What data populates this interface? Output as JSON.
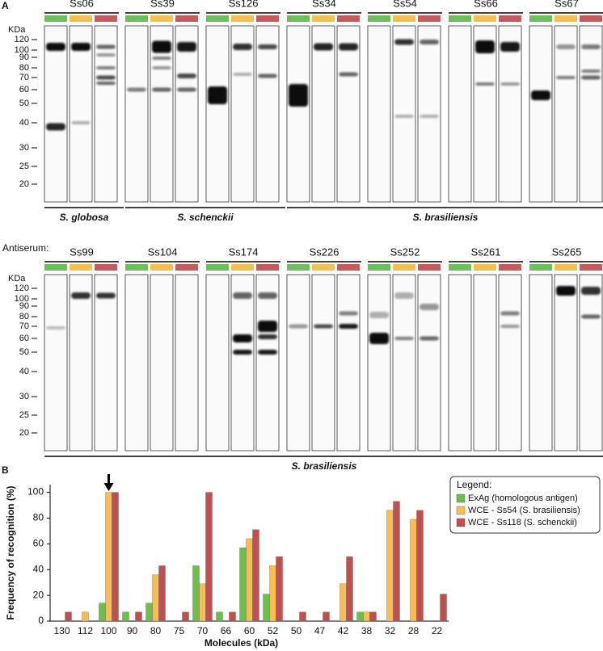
{
  "panel_a": {
    "label": "A",
    "rows": [
      {
        "antisera": [
          "Ss06",
          "Ss39",
          "Ss126",
          "Ss34",
          "Ss54",
          "Ss66",
          "Ss67"
        ],
        "marker_title": "KDa",
        "markers": [
          "120",
          "100",
          "90",
          "80",
          "70",
          "60",
          "50",
          "40",
          "30",
          "25",
          "20"
        ],
        "species": [
          "S. globosa",
          "S. schenckii",
          "S. brasiliensis"
        ]
      },
      {
        "prefix": "Antiserum:",
        "antisera": [
          "Ss99",
          "Ss104",
          "Ss174",
          "Ss226",
          "Ss252",
          "Ss261",
          "Ss265"
        ],
        "marker_title": "KDa",
        "markers": [
          "120",
          "100",
          "90",
          "80",
          "70",
          "60",
          "50",
          "40",
          "30",
          "25",
          "20"
        ],
        "species": [
          "S. brasiliensis"
        ]
      }
    ]
  },
  "chart_data": {
    "type": "bar",
    "panel_label": "B",
    "x_label": "Molecules (kDa)",
    "y_label": "Frequency of recognition (%)",
    "legend_title": "Legend:",
    "categories": [
      "130",
      "112",
      "100",
      "90",
      "80",
      "75",
      "70",
      "66",
      "60",
      "52",
      "50",
      "47",
      "42",
      "38",
      "32",
      "28",
      "22"
    ],
    "series": [
      {
        "name": "ExAg (homologous antigen)",
        "color": "#6cbf4c",
        "values": [
          0,
          0,
          14,
          7,
          14,
          0,
          43,
          7,
          57,
          21,
          0,
          0,
          0,
          7,
          0,
          0,
          0
        ]
      },
      {
        "name": "WCE - Ss54 (S. brasiliensis)",
        "color": "#f8bd55",
        "values": [
          0,
          7,
          100,
          0,
          36,
          0,
          29,
          0,
          64,
          43,
          0,
          0,
          29,
          7,
          86,
          79,
          0
        ]
      },
      {
        "name": "WCE - Ss118 (S. schenckii)",
        "color": "#c0504f",
        "values": [
          7,
          0,
          100,
          7,
          43,
          7,
          100,
          7,
          71,
          50,
          7,
          7,
          50,
          7,
          93,
          86,
          21
        ]
      }
    ],
    "ylim": [
      0,
      106
    ],
    "yticks": [
      0,
      20,
      40,
      60,
      80,
      100
    ],
    "legend": "upper right"
  }
}
